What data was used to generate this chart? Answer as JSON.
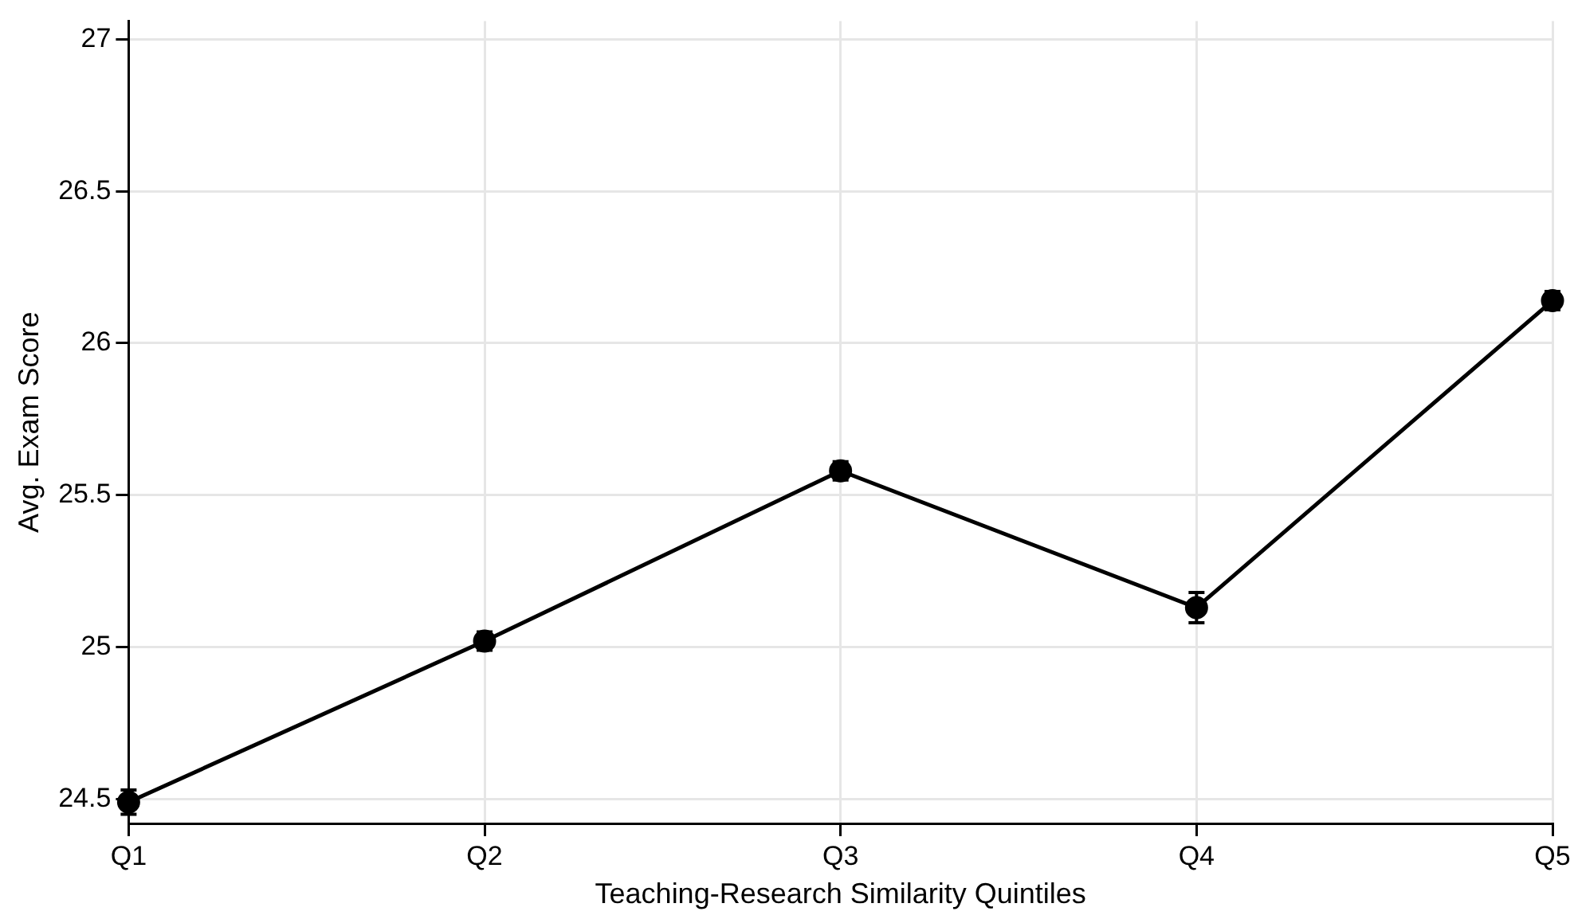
{
  "chart_data": {
    "type": "line",
    "xlabel": "Teaching-Research Similarity Quintiles",
    "ylabel": "Avg. Exam Score",
    "categories": [
      "Q1",
      "Q2",
      "Q3",
      "Q4",
      "Q5"
    ],
    "series": [
      {
        "color": "#000000",
        "values": [
          24.49,
          25.02,
          25.58,
          25.13,
          26.14
        ],
        "errors": [
          0.04,
          0.03,
          0.03,
          0.05,
          0.03
        ]
      }
    ],
    "ylim": [
      24.42,
      27.06
    ],
    "yticks": [
      24.5,
      25,
      25.5,
      26,
      26.5,
      27
    ],
    "grid": true,
    "legend": false,
    "marker": "circle",
    "line_style": "solid"
  }
}
